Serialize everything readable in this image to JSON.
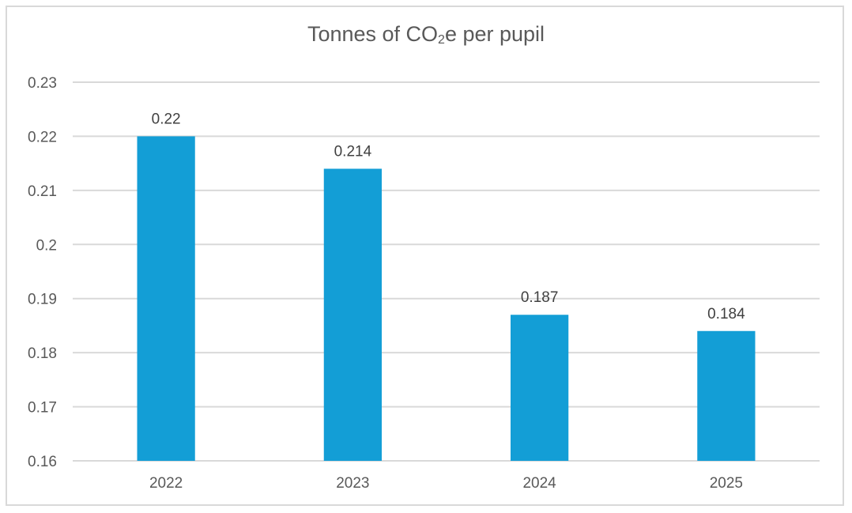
{
  "chart_data": {
    "type": "bar",
    "title": "Tonnes of CO2e per pupil",
    "title_parts": {
      "before": "Tonnes of CO",
      "sub": "2",
      "after": "e per pupil"
    },
    "categories": [
      "2022",
      "2023",
      "2024",
      "2025"
    ],
    "values": [
      0.22,
      0.214,
      0.187,
      0.184
    ],
    "data_labels": [
      "0.22",
      "0.214",
      "0.187",
      "0.184"
    ],
    "xlabel": "",
    "ylabel": "",
    "ylim": [
      0.16,
      0.23
    ],
    "yticks": [
      0.16,
      0.17,
      0.18,
      0.19,
      0.2,
      0.21,
      0.22,
      0.23
    ],
    "ytick_labels": [
      "0.16",
      "0.17",
      "0.18",
      "0.19",
      "0.2",
      "0.21",
      "0.22",
      "0.23"
    ],
    "grid": true,
    "legend": "none",
    "bar_color": "#139ed6"
  }
}
